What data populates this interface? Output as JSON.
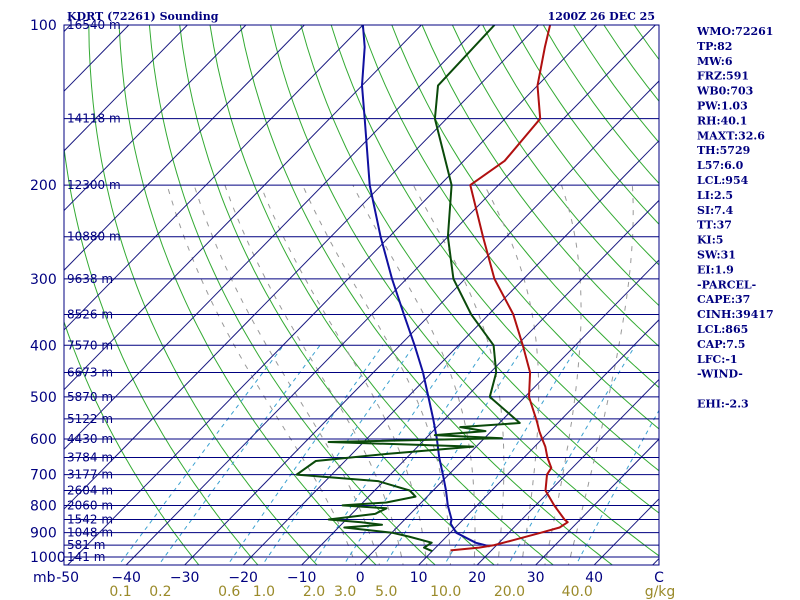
{
  "header": {
    "station": "KDRT (72261) Sounding",
    "time": "1200Z 26 DEC 25"
  },
  "indices": [
    "WMO:72261",
    "TP:82",
    "MW:6",
    "FRZ:591",
    "WB0:703",
    "PW:1.03",
    "RH:40.1",
    "MAXT:32.6",
    "TH:5729",
    "L57:6.0",
    "LCL:954",
    "LI:2.5",
    "SI:7.4",
    "TT:37",
    "KI:5",
    "SW:31",
    "EI:1.9",
    "-PARCEL-",
    "CAPE:37",
    "CINH:39417",
    "LCL:865",
    "CAP:7.5",
    "LFC:-1",
    "-WIND-",
    "",
    "EHI:-2.3"
  ],
  "colors": {
    "isobar": "#000080",
    "isotherm": "#1a1a80",
    "dry_adiabat": "#33aa33",
    "moist_adiabat": "#999999",
    "mixing_ratio": "#3aa0d0",
    "temperature": "#b01010",
    "dewpoint": "#0a4a0a",
    "parcel": "#1010a0"
  },
  "chart_data": {
    "type": "line",
    "title": "KDRT (72261) Sounding",
    "xlabel": "",
    "ylabel": "mb",
    "pressure_ticks": [
      100,
      200,
      300,
      400,
      500,
      600,
      700,
      800,
      900,
      1000
    ],
    "pressure_tick_labels": [
      "100",
      "200",
      "300",
      "400",
      "500",
      "600",
      "700",
      "800",
      "900",
      "1000"
    ],
    "pressure_axis_unit": "mb",
    "temperature_ticks": [
      -50,
      -40,
      -30,
      -20,
      -10,
      0,
      10,
      20,
      30,
      40
    ],
    "temperature_tick_labels": [
      "-50",
      "−40",
      "−30",
      "−20",
      "−10",
      "0",
      "10",
      "20",
      "30",
      "40"
    ],
    "temperature_unit": "C",
    "mixing_ratio_labels": [
      "0.1",
      "0.2",
      "0.6",
      "1.0",
      "2.0",
      "3.0",
      "5.0",
      "10.0",
      "20.0",
      "40.0"
    ],
    "mixing_ratio_values": [
      0.1,
      0.2,
      0.6,
      1.0,
      2.0,
      3.0,
      5.0,
      10.0,
      20.0,
      40.0
    ],
    "mixing_ratio_unit": "g/kg",
    "heights": [
      {
        "p": 100,
        "label": "16540 m"
      },
      {
        "p": 150,
        "label": "14118 m"
      },
      {
        "p": 200,
        "label": "12300 m"
      },
      {
        "p": 250,
        "label": "10880 m"
      },
      {
        "p": 300,
        "label": "9638 m"
      },
      {
        "p": 350,
        "label": "8526 m"
      },
      {
        "p": 400,
        "label": "7570 m"
      },
      {
        "p": 450,
        "label": "6673 m"
      },
      {
        "p": 500,
        "label": "5870 m"
      },
      {
        "p": 550,
        "label": "5122 m"
      },
      {
        "p": 600,
        "label": "4430 m"
      },
      {
        "p": 650,
        "label": "3784 m"
      },
      {
        "p": 700,
        "label": "3177 m"
      },
      {
        "p": 750,
        "label": "2604 m"
      },
      {
        "p": 800,
        "label": "2060 m"
      },
      {
        "p": 850,
        "label": "1542 m"
      },
      {
        "p": 900,
        "label": "1048 m"
      },
      {
        "p": 950,
        "label": "581 m"
      },
      {
        "p": 1000,
        "label": "141 m"
      }
    ],
    "series": [
      {
        "key": "temperature",
        "points": [
          {
            "p": 972,
            "t": 13.0
          },
          {
            "p": 960,
            "t": 17.4
          },
          {
            "p": 950,
            "t": 19.6
          },
          {
            "p": 930,
            "t": 22.0
          },
          {
            "p": 900,
            "t": 25.5
          },
          {
            "p": 880,
            "t": 27.8
          },
          {
            "p": 860,
            "t": 28.3
          },
          {
            "p": 850,
            "t": 27.3
          },
          {
            "p": 800,
            "t": 23.2
          },
          {
            "p": 750,
            "t": 19.2
          },
          {
            "p": 700,
            "t": 16.8
          },
          {
            "p": 680,
            "t": 16.4
          },
          {
            "p": 650,
            "t": 14.0
          },
          {
            "p": 620,
            "t": 11.8
          },
          {
            "p": 600,
            "t": 10.0
          },
          {
            "p": 580,
            "t": 8.2
          },
          {
            "p": 560,
            "t": 6.5
          },
          {
            "p": 550,
            "t": 5.6
          },
          {
            "p": 500,
            "t": 0.7
          },
          {
            "p": 450,
            "t": -3.2
          },
          {
            "p": 400,
            "t": -9.0
          },
          {
            "p": 350,
            "t": -15.8
          },
          {
            "p": 300,
            "t": -25.0
          },
          {
            "p": 250,
            "t": -34.0
          },
          {
            "p": 200,
            "t": -44.8
          },
          {
            "p": 180,
            "t": -43.0
          },
          {
            "p": 150,
            "t": -44.0
          },
          {
            "p": 130,
            "t": -50.0
          },
          {
            "p": 110,
            "t": -55.2
          },
          {
            "p": 100,
            "t": -58.0
          }
        ]
      },
      {
        "key": "dewpoint",
        "points": [
          {
            "p": 975,
            "t": 10.0
          },
          {
            "p": 960,
            "t": 8.0
          },
          {
            "p": 940,
            "t": 8.5
          },
          {
            "p": 915,
            "t": 3.5
          },
          {
            "p": 900,
            "t": 0.0
          },
          {
            "p": 880,
            "t": -9.0
          },
          {
            "p": 870,
            "t": -3.0
          },
          {
            "p": 860,
            "t": -7.0
          },
          {
            "p": 850,
            "t": -13.0
          },
          {
            "p": 830,
            "t": -6.0
          },
          {
            "p": 810,
            "t": -5.0
          },
          {
            "p": 800,
            "t": -13.0
          },
          {
            "p": 790,
            "t": -6.0
          },
          {
            "p": 770,
            "t": -2.0
          },
          {
            "p": 750,
            "t": -4.0
          },
          {
            "p": 720,
            "t": -11.0
          },
          {
            "p": 700,
            "t": -26.0
          },
          {
            "p": 660,
            "t": -25.0
          },
          {
            "p": 640,
            "t": -14.0
          },
          {
            "p": 620,
            "t": -0.5
          },
          {
            "p": 608,
            "t": -26.0
          },
          {
            "p": 598,
            "t": 3.0
          },
          {
            "p": 590,
            "t": -9.0
          },
          {
            "p": 580,
            "t": -1.0
          },
          {
            "p": 570,
            "t": -6.0
          },
          {
            "p": 560,
            "t": 3.5
          },
          {
            "p": 550,
            "t": 2.0
          },
          {
            "p": 500,
            "t": -6.0
          },
          {
            "p": 450,
            "t": -9.0
          },
          {
            "p": 400,
            "t": -14.0
          },
          {
            "p": 350,
            "t": -23.0
          },
          {
            "p": 300,
            "t": -32.0
          },
          {
            "p": 250,
            "t": -40.0
          },
          {
            "p": 200,
            "t": -48.0
          },
          {
            "p": 150,
            "t": -62.0
          },
          {
            "p": 130,
            "t": -67.0
          },
          {
            "p": 100,
            "t": -67.5
          }
        ]
      },
      {
        "key": "parcel",
        "points": [
          {
            "p": 955,
            "t": 19.0
          },
          {
            "p": 940,
            "t": 16.0
          },
          {
            "p": 900,
            "t": 11.0
          },
          {
            "p": 865,
            "t": 8.5
          },
          {
            "p": 850,
            "t": 8.0
          },
          {
            "p": 800,
            "t": 5.0
          },
          {
            "p": 750,
            "t": 2.2
          },
          {
            "p": 700,
            "t": -1.0
          },
          {
            "p": 650,
            "t": -4.5
          },
          {
            "p": 600,
            "t": -8.0
          },
          {
            "p": 550,
            "t": -12.0
          },
          {
            "p": 500,
            "t": -16.5
          },
          {
            "p": 450,
            "t": -21.5
          },
          {
            "p": 400,
            "t": -27.5
          },
          {
            "p": 350,
            "t": -34.5
          },
          {
            "p": 300,
            "t": -42.5
          },
          {
            "p": 250,
            "t": -51.5
          },
          {
            "p": 200,
            "t": -62.0
          },
          {
            "p": 150,
            "t": -74.0
          },
          {
            "p": 130,
            "t": -80.0
          },
          {
            "p": 110,
            "t": -86.0
          },
          {
            "p": 100,
            "t": -90.0
          }
        ]
      }
    ],
    "grid": true
  }
}
